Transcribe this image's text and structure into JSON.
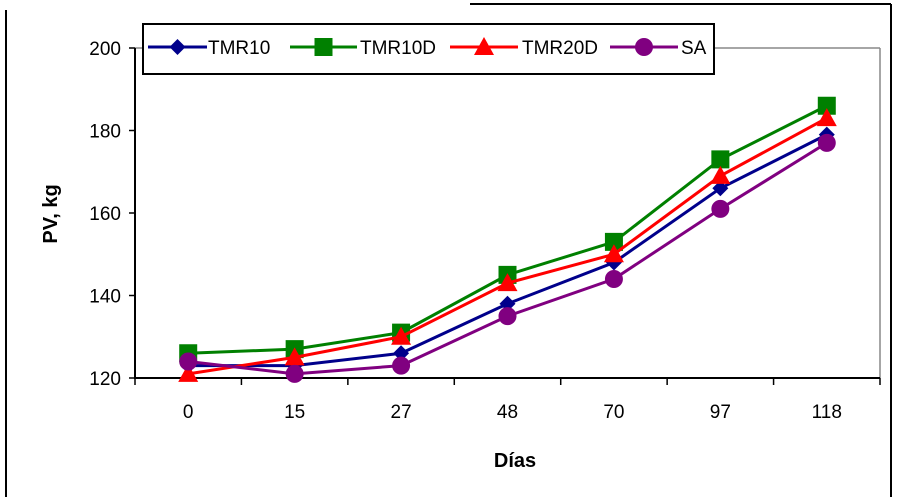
{
  "chart_data": {
    "type": "line",
    "title": "",
    "xlabel": "Días",
    "ylabel": "PV, kg",
    "categories": [
      "0",
      "15",
      "27",
      "48",
      "70",
      "97",
      "118"
    ],
    "ylim": [
      120,
      200
    ],
    "yticks": [
      120,
      140,
      160,
      180,
      200
    ],
    "grid": false,
    "legend_position": "top",
    "series": [
      {
        "name": "TMR10",
        "color": "#00008B",
        "marker": "diamond",
        "values": [
          123,
          123,
          126,
          138,
          148,
          166,
          179
        ]
      },
      {
        "name": "TMR10D",
        "color": "#008000",
        "marker": "square",
        "values": [
          126,
          127,
          131,
          145,
          153,
          173,
          186
        ]
      },
      {
        "name": "TMR20D",
        "color": "#FF0000",
        "marker": "triangle",
        "values": [
          121,
          125,
          130,
          143,
          150,
          169,
          183
        ]
      },
      {
        "name": "SA",
        "color": "#800080",
        "marker": "circle",
        "values": [
          124,
          121,
          123,
          135,
          144,
          161,
          177
        ]
      }
    ]
  }
}
